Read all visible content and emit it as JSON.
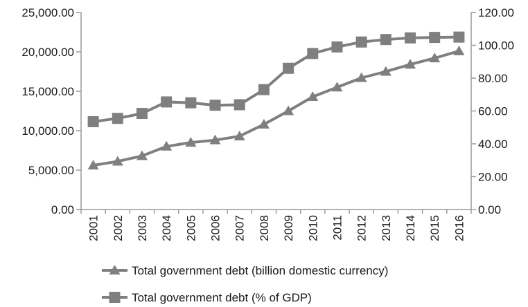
{
  "chart_data": {
    "type": "line",
    "title": "",
    "xlabel": "",
    "ylabel": "",
    "y2label": "",
    "categories": [
      "2001",
      "2002",
      "2003",
      "2004",
      "2005",
      "2006",
      "2007",
      "2008",
      "2009",
      "2010",
      "2011",
      "2012",
      "2013",
      "2014",
      "2015",
      "2016"
    ],
    "y_axis_left": {
      "ylim": [
        0,
        25000
      ],
      "ticks": [
        "0.00",
        "5,000.00",
        "10,000.00",
        "15,000.00",
        "20,000.00",
        "25,000.00"
      ]
    },
    "y_axis_right": {
      "ylim": [
        0,
        120
      ],
      "ticks": [
        "0.00",
        "20.00",
        "40.00",
        "60.00",
        "80.00",
        "100.00",
        "120.00"
      ]
    },
    "grid": false,
    "legend_position": "bottom",
    "series": [
      {
        "name": "Total government debt (billion domestic currency)",
        "axis": "left",
        "marker": "triangle",
        "color": "#7f7f7f",
        "values": [
          5600,
          6100,
          6800,
          8000,
          8500,
          8800,
          9300,
          10800,
          12500,
          14300,
          15500,
          16700,
          17500,
          18400,
          19200,
          20100
        ]
      },
      {
        "name": "Total government debt (% of GDP)",
        "axis": "right",
        "marker": "square",
        "color": "#7f7f7f",
        "values": [
          53.5,
          55.5,
          58.5,
          65.5,
          65.0,
          63.5,
          63.8,
          73.0,
          86.0,
          95.0,
          99.0,
          102.0,
          103.5,
          104.5,
          104.8,
          105.0
        ]
      }
    ]
  }
}
